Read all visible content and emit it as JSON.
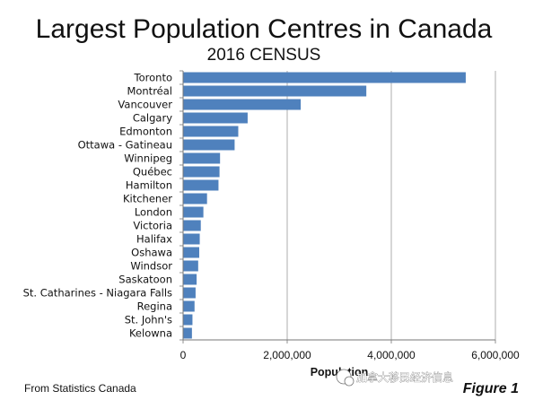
{
  "chart_data": {
    "type": "bar",
    "orientation": "horizontal",
    "title": "Largest Population Centres in Canada",
    "subtitle": "2016 CENSUS",
    "xlabel": "Population",
    "ylabel": "",
    "xlim": [
      0,
      6000000
    ],
    "x_ticks": [
      "0",
      "2,000,000",
      "4,000,000",
      "6,000,000"
    ],
    "x_tick_values": [
      0,
      2000000,
      4000000,
      6000000
    ],
    "grid": "vertical",
    "legend": "none",
    "bar_color": "#4f81bd",
    "categories": [
      "Toronto",
      "Montréal",
      "Vancouver",
      "Calgary",
      "Edmonton",
      "Ottawa - Gatineau",
      "Winnipeg",
      "Québec",
      "Hamilton",
      "Kitchener",
      "London",
      "Victoria",
      "Halifax",
      "Oshawa",
      "Windsor",
      "Saskatoon",
      "St. Catharines - Niagara Falls",
      "Regina",
      "St. John's",
      "Kelowna"
    ],
    "values": [
      5430000,
      3520000,
      2260000,
      1240000,
      1060000,
      990000,
      710000,
      700000,
      680000,
      460000,
      390000,
      340000,
      320000,
      310000,
      290000,
      260000,
      240000,
      220000,
      180000,
      170000
    ]
  },
  "footer": {
    "source": "From Statistics Canada",
    "figure_label": "Figure 1"
  },
  "watermark": {
    "text": "加拿大移民经济信息"
  }
}
